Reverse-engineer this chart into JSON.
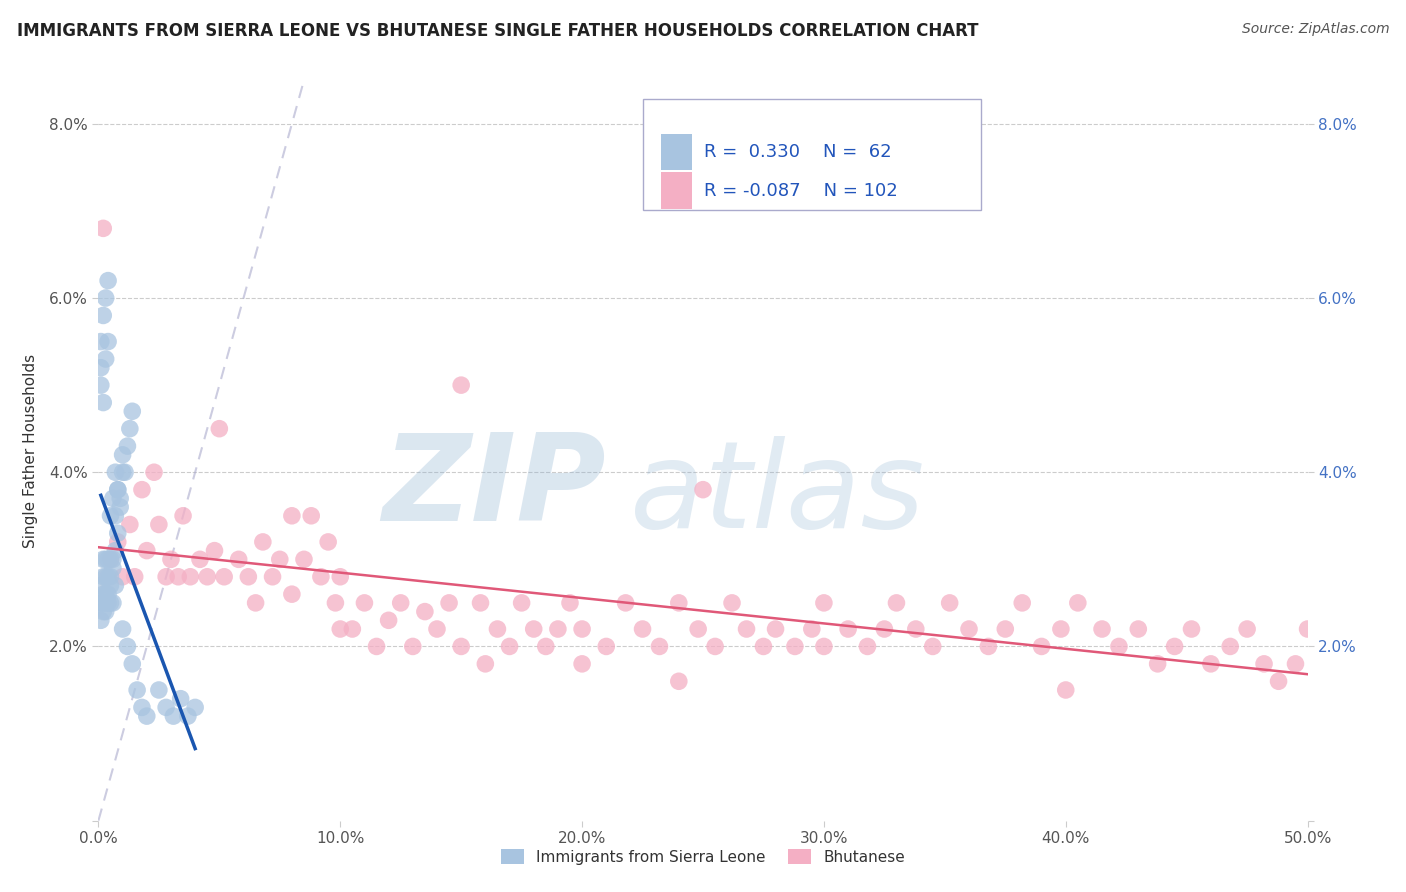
{
  "title": "IMMIGRANTS FROM SIERRA LEONE VS BHUTANESE SINGLE FATHER HOUSEHOLDS CORRELATION CHART",
  "source": "Source: ZipAtlas.com",
  "ylabel": "Single Father Households",
  "xlim": [
    0.0,
    0.5
  ],
  "ylim": [
    0.0,
    0.085
  ],
  "xtick_vals": [
    0.0,
    0.1,
    0.2,
    0.3,
    0.4,
    0.5
  ],
  "ytick_vals": [
    0.0,
    0.02,
    0.04,
    0.06,
    0.08
  ],
  "ytick_labels": [
    "",
    "2.0%",
    "4.0%",
    "6.0%",
    "8.0%"
  ],
  "xtick_labels": [
    "0.0%",
    "10.0%",
    "20.0%",
    "30.0%",
    "40.0%",
    "50.0%"
  ],
  "blue_color": "#a8c4e0",
  "pink_color": "#f4afc4",
  "blue_line_color": "#1a56b0",
  "pink_line_color": "#e05878",
  "legend_blue_R": "0.330",
  "legend_blue_N": "62",
  "legend_pink_R": "-0.087",
  "legend_pink_N": "102",
  "legend_label_blue": "Immigrants from Sierra Leone",
  "legend_label_pink": "Bhutanese",
  "watermark_zip": "ZIP",
  "watermark_atlas": "atlas",
  "blue_x": [
    0.001,
    0.001,
    0.001,
    0.002,
    0.002,
    0.002,
    0.002,
    0.002,
    0.003,
    0.003,
    0.003,
    0.003,
    0.003,
    0.004,
    0.004,
    0.004,
    0.004,
    0.005,
    0.005,
    0.005,
    0.005,
    0.006,
    0.006,
    0.006,
    0.007,
    0.007,
    0.007,
    0.008,
    0.008,
    0.009,
    0.01,
    0.01,
    0.011,
    0.012,
    0.013,
    0.014,
    0.001,
    0.001,
    0.001,
    0.002,
    0.002,
    0.003,
    0.003,
    0.004,
    0.004,
    0.005,
    0.006,
    0.007,
    0.008,
    0.009,
    0.01,
    0.012,
    0.014,
    0.016,
    0.018,
    0.02,
    0.025,
    0.028,
    0.031,
    0.034,
    0.037,
    0.04
  ],
  "blue_y": [
    0.025,
    0.027,
    0.023,
    0.026,
    0.028,
    0.024,
    0.025,
    0.03,
    0.026,
    0.028,
    0.025,
    0.024,
    0.03,
    0.026,
    0.028,
    0.03,
    0.025,
    0.027,
    0.03,
    0.025,
    0.028,
    0.029,
    0.025,
    0.03,
    0.031,
    0.027,
    0.035,
    0.033,
    0.038,
    0.037,
    0.04,
    0.042,
    0.04,
    0.043,
    0.045,
    0.047,
    0.05,
    0.052,
    0.055,
    0.048,
    0.058,
    0.06,
    0.053,
    0.055,
    0.062,
    0.035,
    0.037,
    0.04,
    0.038,
    0.036,
    0.022,
    0.02,
    0.018,
    0.015,
    0.013,
    0.012,
    0.015,
    0.013,
    0.012,
    0.014,
    0.012,
    0.013
  ],
  "pink_x": [
    0.002,
    0.005,
    0.008,
    0.01,
    0.013,
    0.015,
    0.018,
    0.02,
    0.023,
    0.025,
    0.028,
    0.03,
    0.033,
    0.035,
    0.038,
    0.042,
    0.045,
    0.048,
    0.052,
    0.058,
    0.062,
    0.065,
    0.068,
    0.072,
    0.075,
    0.08,
    0.085,
    0.088,
    0.092,
    0.095,
    0.098,
    0.1,
    0.105,
    0.11,
    0.115,
    0.12,
    0.125,
    0.13,
    0.135,
    0.14,
    0.145,
    0.15,
    0.158,
    0.165,
    0.17,
    0.175,
    0.18,
    0.185,
    0.19,
    0.195,
    0.2,
    0.21,
    0.218,
    0.225,
    0.232,
    0.24,
    0.248,
    0.255,
    0.262,
    0.268,
    0.275,
    0.28,
    0.288,
    0.295,
    0.3,
    0.31,
    0.318,
    0.325,
    0.33,
    0.338,
    0.345,
    0.352,
    0.36,
    0.368,
    0.375,
    0.382,
    0.39,
    0.398,
    0.405,
    0.415,
    0.422,
    0.43,
    0.438,
    0.445,
    0.452,
    0.46,
    0.468,
    0.475,
    0.482,
    0.488,
    0.495,
    0.5,
    0.05,
    0.15,
    0.25,
    0.1,
    0.2,
    0.3,
    0.4,
    0.08,
    0.16,
    0.24
  ],
  "pink_y": [
    0.068,
    0.03,
    0.032,
    0.028,
    0.034,
    0.028,
    0.038,
    0.031,
    0.04,
    0.034,
    0.028,
    0.03,
    0.028,
    0.035,
    0.028,
    0.03,
    0.028,
    0.031,
    0.028,
    0.03,
    0.028,
    0.025,
    0.032,
    0.028,
    0.03,
    0.026,
    0.03,
    0.035,
    0.028,
    0.032,
    0.025,
    0.028,
    0.022,
    0.025,
    0.02,
    0.023,
    0.025,
    0.02,
    0.024,
    0.022,
    0.025,
    0.02,
    0.025,
    0.022,
    0.02,
    0.025,
    0.022,
    0.02,
    0.022,
    0.025,
    0.022,
    0.02,
    0.025,
    0.022,
    0.02,
    0.025,
    0.022,
    0.02,
    0.025,
    0.022,
    0.02,
    0.022,
    0.02,
    0.022,
    0.025,
    0.022,
    0.02,
    0.022,
    0.025,
    0.022,
    0.02,
    0.025,
    0.022,
    0.02,
    0.022,
    0.025,
    0.02,
    0.022,
    0.025,
    0.022,
    0.02,
    0.022,
    0.018,
    0.02,
    0.022,
    0.018,
    0.02,
    0.022,
    0.018,
    0.016,
    0.018,
    0.022,
    0.045,
    0.05,
    0.038,
    0.022,
    0.018,
    0.02,
    0.015,
    0.035,
    0.018,
    0.016
  ]
}
